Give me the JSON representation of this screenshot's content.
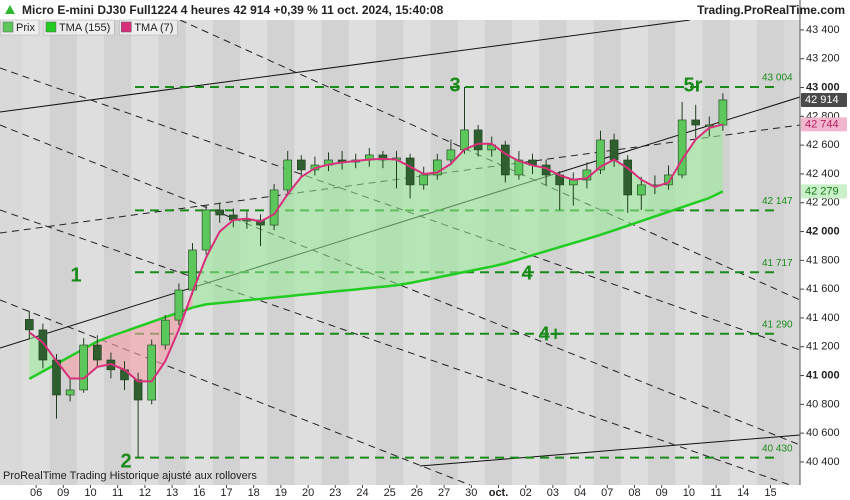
{
  "chart_data": {
    "type": "candlestick",
    "title": "Micro E-mini DJ30 Full1224 4 heures 42 914 +0,39 % 11 oct. 2024, 15:40:08",
    "source": "Trading.ProRealTime.com",
    "footer": "ProRealTime Trading Historique ajusté aux rollovers",
    "categories": [
      "06",
      null,
      "09",
      null,
      "10",
      null,
      "11",
      null,
      "12",
      null,
      "13",
      null,
      "16",
      null,
      "17",
      null,
      "18",
      null,
      "19",
      null,
      "20",
      null,
      "23",
      null,
      "24",
      null,
      "25",
      null,
      "26",
      null,
      "27",
      null,
      "30",
      null,
      "oct.",
      null,
      "02",
      null,
      "03",
      null,
      "04",
      null,
      "07",
      null,
      "08",
      null,
      "09",
      null,
      "10",
      null,
      "11",
      null,
      "14",
      null,
      "15",
      null
    ],
    "series": [
      {
        "name": "Prix",
        "color": "#5cc85c",
        "down_color": "#2f5f2f",
        "open": [
          41390,
          41317,
          41108,
          40865,
          40900,
          41212,
          41108,
          41040,
          40970,
          40830,
          41212,
          41385,
          41594,
          41872,
          42150,
          42115,
          42080,
          42080,
          42045,
          42289,
          42497,
          42428,
          42462,
          42497,
          42483,
          42497,
          42532,
          42497,
          42511,
          42324,
          42393,
          42497,
          42567,
          42706,
          42567,
          42601,
          42393,
          42497,
          42462,
          42393,
          42324,
          42358,
          42428,
          42636,
          42497,
          42254,
          42324,
          42324,
          42393,
          42775,
          42740,
          42740,
          null,
          null,
          null,
          null
        ],
        "high": [
          41450,
          41360,
          41150,
          40980,
          41260,
          41280,
          41160,
          41100,
          41020,
          41250,
          41420,
          41640,
          41920,
          42180,
          42200,
          42160,
          42140,
          42120,
          42330,
          42560,
          42530,
          42520,
          42550,
          42560,
          42540,
          42580,
          42560,
          42560,
          42540,
          42450,
          42540,
          42640,
          43004,
          42740,
          42660,
          42630,
          42560,
          42540,
          42500,
          42420,
          42410,
          42480,
          42700,
          42680,
          42530,
          42380,
          42390,
          42460,
          42900,
          42880,
          42800,
          42960,
          null,
          null,
          null,
          null
        ],
        "low": [
          41250,
          41050,
          40700,
          40820,
          40880,
          41060,
          40980,
          40900,
          40430,
          40800,
          41180,
          41350,
          41560,
          41840,
          42060,
          42030,
          42020,
          41900,
          42010,
          42250,
          42380,
          42390,
          42420,
          42430,
          42440,
          42450,
          42440,
          42300,
          42230,
          42290,
          42360,
          42460,
          42540,
          42520,
          42520,
          42340,
          42360,
          42400,
          42320,
          42150,
          42180,
          42300,
          42400,
          42450,
          42130,
          42150,
          42260,
          42290,
          42370,
          42650,
          42660,
          42700,
          null,
          null,
          null,
          null
        ],
        "close": [
          41317,
          41108,
          40865,
          40900,
          41212,
          41108,
          41040,
          40970,
          40830,
          41212,
          41385,
          41594,
          41872,
          42150,
          42115,
          42080,
          42080,
          42045,
          42289,
          42497,
          42428,
          42462,
          42497,
          42483,
          42497,
          42532,
          42497,
          42511,
          42324,
          42393,
          42497,
          42567,
          42706,
          42567,
          42601,
          42393,
          42497,
          42462,
          42393,
          42324,
          42358,
          42428,
          42636,
          42497,
          42254,
          42324,
          42324,
          42393,
          42775,
          42740,
          42740,
          42914,
          null,
          null,
          null,
          null
        ]
      },
      {
        "name": "TMA (155)",
        "color": "#22cc22",
        "values": [
          40977,
          41029,
          41081,
          41133,
          41185,
          41237,
          41273,
          41306,
          41339,
          41372,
          41405,
          41438,
          41472,
          41494,
          41504,
          41513,
          41523,
          41532,
          41542,
          41551,
          41561,
          41570,
          41580,
          41589,
          41598,
          41608,
          41617,
          41627,
          41643,
          41662,
          41681,
          41700,
          41719,
          41738,
          41757,
          41779,
          41807,
          41836,
          41864,
          41892,
          41920,
          41948,
          41977,
          42009,
          42041,
          42073,
          42105,
          42137,
          42169,
          42201,
          42233,
          42279,
          null,
          null,
          null,
          null
        ]
      },
      {
        "name": "TMA (7)",
        "color": "#d6307a",
        "values": [
          41300,
          41230,
          41100,
          40980,
          40980,
          41060,
          41080,
          41040,
          40960,
          40960,
          41100,
          41320,
          41580,
          41820,
          42000,
          42080,
          42090,
          42070,
          42120,
          42260,
          42380,
          42440,
          42465,
          42480,
          42490,
          42500,
          42505,
          42500,
          42450,
          42400,
          42410,
          42470,
          42570,
          42610,
          42610,
          42540,
          42490,
          42460,
          42440,
          42390,
          42360,
          42370,
          42450,
          42500,
          42440,
          42360,
          42310,
          42340,
          42500,
          42640,
          42720,
          42744,
          null,
          null,
          null,
          null
        ]
      }
    ],
    "ylim": [
      40240,
      43608
    ],
    "yticks": [
      {
        "value": 40400,
        "label": "40 400"
      },
      {
        "value": 40600,
        "label": "40 600"
      },
      {
        "value": 40800,
        "label": "40 800"
      },
      {
        "value": 41000,
        "label": "41 000"
      },
      {
        "value": 41200,
        "label": "41 200"
      },
      {
        "value": 41400,
        "label": "41 400"
      },
      {
        "value": 41600,
        "label": "41 600"
      },
      {
        "value": 41800,
        "label": "41 800"
      },
      {
        "value": 42000,
        "label": "42 000"
      },
      {
        "value": 42200,
        "label": "42 200"
      },
      {
        "value": 42400,
        "label": "42 400"
      },
      {
        "value": 42600,
        "label": "42 600"
      },
      {
        "value": 42800,
        "label": "42 800"
      },
      {
        "value": 43000,
        "label": "43 000"
      },
      {
        "value": 43200,
        "label": "43 200"
      },
      {
        "value": 43400,
        "label": "43 400"
      }
    ],
    "levels": [
      {
        "value": 43004,
        "label": "43 004"
      },
      {
        "value": 42147,
        "label": "42 147"
      },
      {
        "value": 41717,
        "label": "41 717"
      },
      {
        "value": 41290,
        "label": "41 290"
      },
      {
        "value": 40430,
        "label": "40 430"
      }
    ],
    "level_color": "#1a8a1a",
    "annotations": [
      "1",
      "2",
      "3",
      "4",
      "4+",
      "5r"
    ],
    "badges": [
      {
        "value": 42914,
        "label": "42 914",
        "color": "#4a4a4a",
        "text_color": "#ffffff"
      },
      {
        "value": 42744,
        "label": "42 744",
        "color": "#f2b6cf",
        "text_color": "#b0205f"
      },
      {
        "value": 42279,
        "label": "42 279",
        "color": "#c9f0c9",
        "text_color": "#1a7a1a"
      }
    ]
  }
}
